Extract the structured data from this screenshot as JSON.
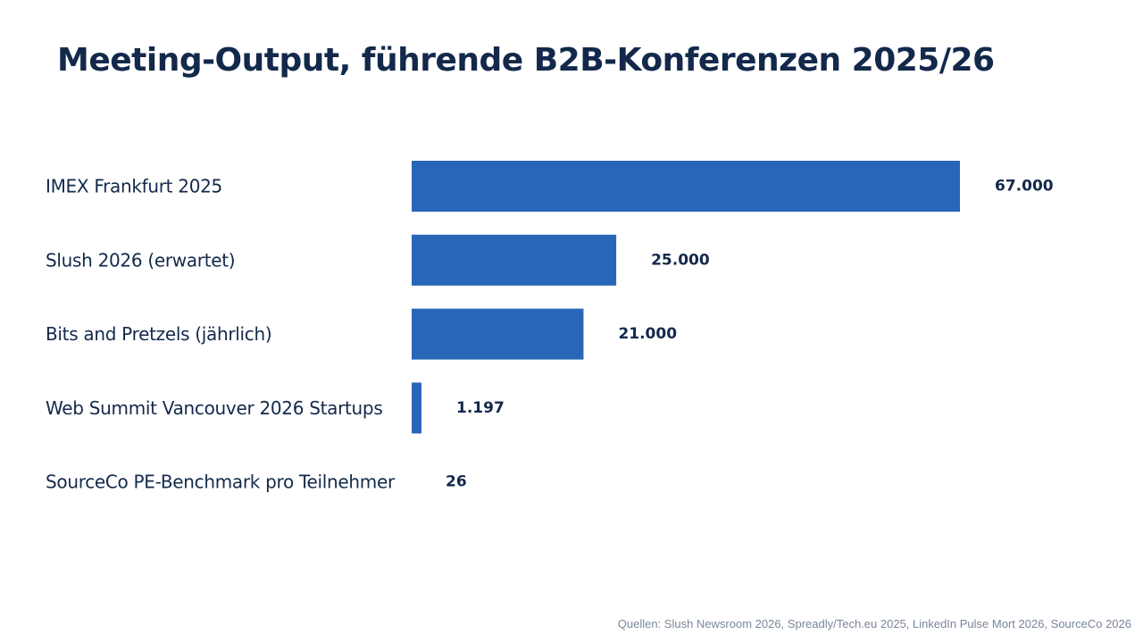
{
  "title": "Meeting-Output, führende B2B-Konferenzen 2025/26",
  "source": "Quellen: Slush Newsroom 2026, Spreadly/Tech.eu 2025, LinkedIn Pulse Mort 2026, SourceCo 2026",
  "colors": {
    "bar": "#2866b7",
    "text": "#13294b",
    "source": "#7a8797",
    "background": "#ffffff"
  },
  "chart_data": {
    "type": "bar",
    "orientation": "horizontal",
    "title": "Meeting-Output, führende B2B-Konferenzen 2025/26",
    "xlabel": "",
    "ylabel": "",
    "categories": [
      "IMEX Frankfurt 2025",
      "Slush 2026 (erwartet)",
      "Bits and Pretzels (jährlich)",
      "Web Summit Vancouver 2026 Startups",
      "SourceCo PE-Benchmark pro Teilnehmer"
    ],
    "values": [
      67000,
      25000,
      21000,
      1197,
      26
    ],
    "value_labels": [
      "67.000",
      "25.000",
      "21.000",
      "1.197",
      "26"
    ],
    "xlim": [
      0,
      67000
    ],
    "grid": false,
    "legend": "none"
  }
}
